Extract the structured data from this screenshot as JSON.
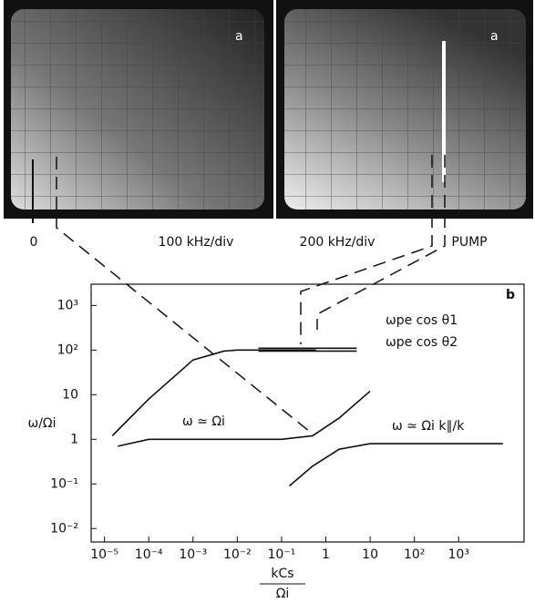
{
  "photos": [
    {
      "label": "a"
    },
    {
      "label": "a"
    }
  ],
  "photo_captions": [
    "0",
    "100 kHz/div",
    "200 kHz/div",
    "PUMP"
  ],
  "chart_data": {
    "type": "line",
    "panel_label": "b",
    "xscale": "log",
    "yscale": "log",
    "ylabel": "ω/Ωi",
    "xlabel": {
      "numerator": "kCs",
      "denominator": "Ωi"
    },
    "xlim": [
      5e-06,
      30000
    ],
    "ylim": [
      0.005,
      3000
    ],
    "xticks": [
      {
        "value": 1e-05,
        "label": "10⁻⁵"
      },
      {
        "value": 0.0001,
        "label": "10⁻⁴"
      },
      {
        "value": 0.001,
        "label": "10⁻³"
      },
      {
        "value": 0.01,
        "label": "10⁻²"
      },
      {
        "value": 0.1,
        "label": "10⁻¹"
      },
      1,
      10,
      {
        "value": 100,
        "label": "10²"
      },
      {
        "value": 1000,
        "label": "10³"
      }
    ],
    "yticks": [
      {
        "value": 1000,
        "label": "10³"
      },
      {
        "value": 100,
        "label": "10²"
      },
      10,
      1,
      {
        "value": 0.1,
        "label": "10⁻¹"
      },
      {
        "value": 0.01,
        "label": "10⁻²"
      }
    ],
    "series": [
      {
        "color": "#111111",
        "x": [
          1.5e-05,
          0.0001,
          0.001,
          0.005,
          0.01,
          0.1,
          0.6
        ],
        "values": [
          1.2,
          8,
          60,
          95,
          100,
          100,
          100
        ]
      },
      {
        "color": "#111111",
        "x": [
          2e-05,
          0.0001,
          0.1,
          0.5,
          2,
          10
        ],
        "values": [
          0.7,
          1,
          1,
          1.2,
          3,
          12
        ]
      },
      {
        "color": "#111111",
        "x": [
          0.15,
          0.5,
          2,
          10,
          10000
        ],
        "values": [
          0.09,
          0.25,
          0.6,
          0.8,
          0.8
        ]
      },
      {
        "color": "#111111",
        "x": [
          0.03,
          5
        ],
        "values": [
          110,
          110
        ]
      },
      {
        "color": "#111111",
        "x": [
          0.03,
          5
        ],
        "values": [
          95,
          95
        ]
      }
    ],
    "annotations": [
      "ωpe cos θ1",
      "ωpe cos θ2",
      "ω ≃ Ωi",
      "ω ≃ Ωi k∥/k"
    ]
  }
}
